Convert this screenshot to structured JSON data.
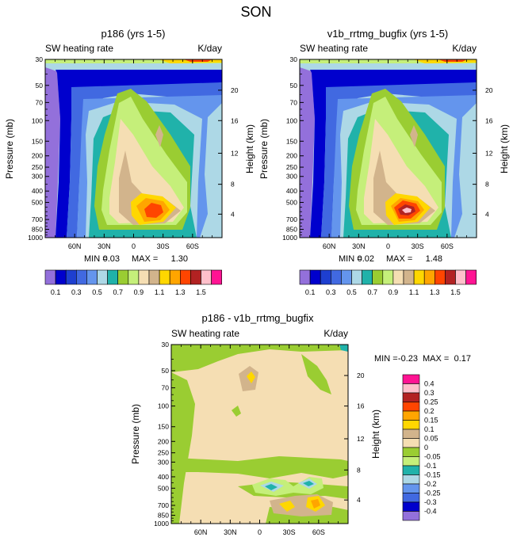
{
  "figure_title": "SON",
  "chart_data": [
    {
      "type": "heatmap",
      "title": "p186 (yrs 1-5)",
      "subtitle_left": "SW heating rate",
      "subtitle_right": "K/day",
      "ylabel": "Pressure (mb)",
      "ylabel_right": "Height (km)",
      "xticks": [
        "60N",
        "30N",
        "0",
        "30S",
        "60S"
      ],
      "yticks": [
        "30",
        "50",
        "70",
        "100",
        "150",
        "200",
        "250",
        "300",
        "400",
        "500",
        "700",
        "850",
        "1000"
      ],
      "height_ticks": [
        "20",
        "16",
        "12",
        "8",
        "4"
      ],
      "ylim": [
        1000,
        30
      ],
      "stats": {
        "min_label": "MIN =",
        "min": "0.03",
        "max_label": "MAX =",
        "max": "1.30"
      },
      "levels": [
        0.1,
        0.2,
        0.3,
        0.4,
        0.5,
        0.6,
        0.7,
        0.8,
        0.9,
        1.0,
        1.1,
        1.2,
        1.3,
        1.4,
        1.5
      ],
      "colorbar_labels": [
        "0.1",
        "0.3",
        "0.5",
        "0.7",
        "0.9",
        "1.1",
        "1.3",
        "1.5"
      ],
      "max_value": 1.3
    },
    {
      "type": "heatmap",
      "title": "v1b_rrtmg_bugfix (yrs 1-5)",
      "subtitle_left": "SW heating rate",
      "subtitle_right": "K/day",
      "ylabel": "Pressure (mb)",
      "ylabel_right": "Height (km)",
      "xticks": [
        "60N",
        "30N",
        "0",
        "30S",
        "60S"
      ],
      "yticks": [
        "30",
        "50",
        "70",
        "100",
        "150",
        "200",
        "250",
        "300",
        "400",
        "500",
        "700",
        "850",
        "1000"
      ],
      "height_ticks": [
        "20",
        "16",
        "12",
        "8",
        "4"
      ],
      "ylim": [
        1000,
        30
      ],
      "stats": {
        "min_label": "MIN =",
        "min": "0.02",
        "max_label": "MAX =",
        "max": "1.48"
      },
      "levels": [
        0.1,
        0.2,
        0.3,
        0.4,
        0.5,
        0.6,
        0.7,
        0.8,
        0.9,
        1.0,
        1.1,
        1.2,
        1.3,
        1.4,
        1.5
      ],
      "colorbar_labels": [
        "0.1",
        "0.3",
        "0.5",
        "0.7",
        "0.9",
        "1.1",
        "1.3",
        "1.5"
      ],
      "max_value": 1.48
    },
    {
      "type": "heatmap",
      "title": "p186 - v1b_rrtmg_bugfix",
      "subtitle_left": "SW heating rate",
      "subtitle_right": "K/day",
      "ylabel": "Pressure (mb)",
      "ylabel_right": "Height (km)",
      "xticks": [
        "60N",
        "30N",
        "0",
        "30S",
        "60S"
      ],
      "yticks": [
        "30",
        "50",
        "70",
        "100",
        "150",
        "200",
        "250",
        "300",
        "400",
        "500",
        "700",
        "850",
        "1000"
      ],
      "height_ticks": [
        "20",
        "16",
        "12",
        "8",
        "4"
      ],
      "ylim": [
        1000,
        30
      ],
      "stats": {
        "min_label": "MIN =",
        "min": "-0.23",
        "max_label": "MAX =",
        "max": "0.17"
      },
      "levels": [
        -0.4,
        -0.3,
        -0.25,
        -0.2,
        -0.15,
        -0.1,
        -0.05,
        0,
        0.05,
        0.1,
        0.15,
        0.2,
        0.25,
        0.3,
        0.4
      ],
      "colorbar_labels": [
        "0.4",
        "0.3",
        "0.25",
        "0.2",
        "0.15",
        "0.1",
        "0.05",
        "0",
        "-0.05",
        "-0.1",
        "-0.15",
        "-0.2",
        "-0.25",
        "-0.3",
        "-0.4"
      ]
    }
  ],
  "colors": {
    "full": [
      "#9370db",
      "#0000cd",
      "#1e3fd0",
      "#4169e1",
      "#6495ed",
      "#add8e6",
      "#20b2aa",
      "#9acd32",
      "#c5ef7a",
      "#f5deb3",
      "#d2b48c",
      "#ffd700",
      "#ffa500",
      "#ff4500",
      "#b22222",
      "#ffc0cb",
      "#ff1493"
    ],
    "diff": [
      "#ff1493",
      "#ffc0cb",
      "#b22222",
      "#ff4500",
      "#ffa500",
      "#ffd700",
      "#d2b48c",
      "#f5deb3",
      "#9acd32",
      "#c5ef7a",
      "#20b2aa",
      "#add8e6",
      "#6495ed",
      "#4169e1",
      "#0000cd",
      "#9370db"
    ]
  }
}
